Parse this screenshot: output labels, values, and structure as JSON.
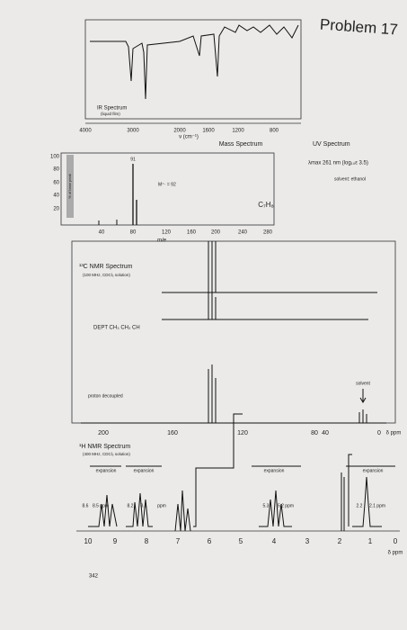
{
  "header": {
    "title": "Problem 17"
  },
  "ir": {
    "title": "IR Spectrum",
    "subtitle": "(liquid film)",
    "xticks": [
      "4000",
      "3000",
      "2000",
      "1600",
      "1200",
      "800"
    ],
    "xlabel": "ν (cm⁻¹)"
  },
  "mass": {
    "title": "Mass Spectrum",
    "yticks": [
      "100",
      "80",
      "60",
      "40",
      "20"
    ],
    "ylabel": "% of base peak",
    "xticks": [
      "40",
      "80",
      "120",
      "160",
      "200",
      "240",
      "280"
    ],
    "xlabel": "m/e",
    "peak_label": "91",
    "molecular_ion": "M⁺· = 92"
  },
  "uv": {
    "title": "UV Spectrum",
    "lambda": "λmax 261 nm (log₁₀ε 3.5)",
    "solvent": "solvent: ethanol"
  },
  "formula": "C₇H₈",
  "c13": {
    "title": "¹³C NMR Spectrum",
    "subtitle": "(100 MHz, CDCl₃ solution)",
    "dept": "DEPT CH₃ CH₂ CH",
    "decoupled": "proton decoupled",
    "solvent": "solvent",
    "xticks": [
      "200",
      "160",
      "120",
      "80",
      "40",
      "0"
    ],
    "xlabel": "δ ppm"
  },
  "h1": {
    "title": "¹H NMR Spectrum",
    "subtitle": "(400 MHz, CDCl₃ solution)",
    "expansions": [
      "expansion",
      "expansion",
      "expansion",
      "expansion"
    ],
    "expansion_ticks": [
      "8.6",
      "8.5 ppm",
      "8.2",
      "8.1",
      "ppm",
      "5.3",
      "5.2 ppm",
      "2.2",
      "2.1 ppm"
    ],
    "xticks": [
      "10",
      "9",
      "8",
      "7",
      "6",
      "5",
      "4",
      "3",
      "2",
      "1",
      "0"
    ],
    "xlabel": "δ ppm"
  },
  "footer": {
    "page": "342"
  }
}
